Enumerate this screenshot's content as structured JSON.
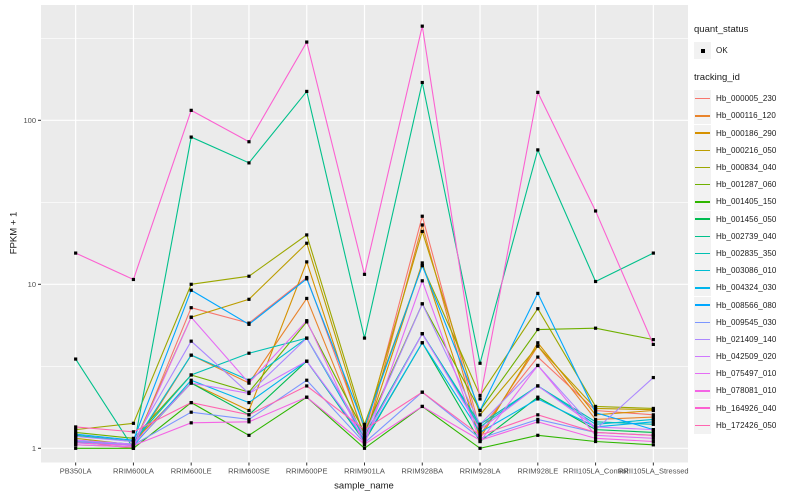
{
  "chart_data": {
    "type": "line",
    "xlabel": "sample_name",
    "ylabel": "FPKM + 1",
    "y_scale": "log10",
    "y_ticks": [
      1,
      10,
      100
    ],
    "y_minor_ticks": [
      3.162,
      31.62,
      316.2
    ],
    "ylim": [
      1,
      505
    ],
    "grid": "on",
    "legend_position": "right",
    "point_color": "#000000",
    "panel_color": "#EBEBEB",
    "grid_color": "#FFFFFF",
    "axis_text_color": "#4D4D4D",
    "categories": [
      "PB350LA",
      "RRIM600LA",
      "RRIM600LE",
      "RRIM600SE",
      "RRIM600PE",
      "RRIM901LA",
      "RRIM928BA",
      "RRIM928LA",
      "RRIM928LE",
      "RRII105LA_Control",
      "RRII105LA_Stressed"
    ],
    "series": [
      {
        "name": "Hb_000005_230",
        "color": "#F8766D",
        "values": [
          1.1,
          1.0,
          7.2,
          5.8,
          11.0,
          1.2,
          26.0,
          1.3,
          3.6,
          1.7,
          1.6
        ]
      },
      {
        "name": "Hb_000116_120",
        "color": "#E9842C",
        "values": [
          1.05,
          1.02,
          3.7,
          2.5,
          8.2,
          1.1,
          23.0,
          1.2,
          4.2,
          1.5,
          1.55
        ]
      },
      {
        "name": "Hb_000186_290",
        "color": "#D69100",
        "values": [
          1.2,
          1.1,
          2.5,
          1.7,
          13.7,
          1.15,
          13.5,
          1.15,
          4.4,
          1.6,
          1.7
        ]
      },
      {
        "name": "Hb_000216_050",
        "color": "#BC9D00",
        "values": [
          1.15,
          1.05,
          6.3,
          8.1,
          17.8,
          1.3,
          21.0,
          1.6,
          4.2,
          1.75,
          1.72
        ]
      },
      {
        "name": "Hb_000834_040",
        "color": "#9CA700",
        "values": [
          1.3,
          1.42,
          10.0,
          11.2,
          20.0,
          1.4,
          13.0,
          2.1,
          7.1,
          1.8,
          1.75
        ]
      },
      {
        "name": "Hb_001287_060",
        "color": "#6FB000",
        "values": [
          1.25,
          1.15,
          2.8,
          2.2,
          5.9,
          1.25,
          7.6,
          1.7,
          5.3,
          5.4,
          4.6
        ]
      },
      {
        "name": "Hb_001405_150",
        "color": "#2FB600",
        "values": [
          1.0,
          1.0,
          1.9,
          1.2,
          2.05,
          1.0,
          1.8,
          1.0,
          1.2,
          1.1,
          1.05
        ]
      },
      {
        "name": "Hb_001456_050",
        "color": "#00BC51",
        "values": [
          1.1,
          1.05,
          2.5,
          1.6,
          3.4,
          1.1,
          4.4,
          1.1,
          2.05,
          1.3,
          1.25
        ]
      },
      {
        "name": "Hb_002739_040",
        "color": "#00C08B",
        "values": [
          3.5,
          1.0,
          79,
          55,
          150,
          4.7,
          170,
          3.3,
          66,
          10.4,
          15.5
        ]
      },
      {
        "name": "Hb_002835_350",
        "color": "#00C0B2",
        "values": [
          1.2,
          1.1,
          2.8,
          3.8,
          4.7,
          1.2,
          5.0,
          1.4,
          2.4,
          1.45,
          1.4
        ]
      },
      {
        "name": "Hb_003086_010",
        "color": "#00BDD2",
        "values": [
          1.12,
          1.06,
          3.7,
          2.6,
          4.7,
          1.15,
          5.0,
          1.35,
          2.4,
          1.4,
          1.5
        ]
      },
      {
        "name": "Hb_004324_030",
        "color": "#00B5EC",
        "values": [
          1.08,
          1.04,
          2.6,
          1.9,
          3.4,
          1.12,
          4.4,
          1.25,
          2.0,
          1.35,
          1.45
        ]
      },
      {
        "name": "Hb_008566_080",
        "color": "#00A7FF",
        "values": [
          1.22,
          1.12,
          9.2,
          5.7,
          10.8,
          1.35,
          13.0,
          1.7,
          8.8,
          1.65,
          1.3
        ]
      },
      {
        "name": "Hb_009545_030",
        "color": "#7C96FF",
        "values": [
          1.1,
          1.05,
          1.66,
          1.5,
          2.6,
          1.08,
          2.2,
          1.15,
          1.5,
          1.25,
          1.2
        ]
      },
      {
        "name": "Hb_021409_140",
        "color": "#AC88FF",
        "values": [
          1.18,
          1.1,
          4.5,
          2.16,
          4.7,
          1.2,
          7.6,
          1.4,
          3.2,
          1.3,
          2.7
        ]
      },
      {
        "name": "Hb_042509_020",
        "color": "#CF78FF",
        "values": [
          1.12,
          1.06,
          2.5,
          2.16,
          3.4,
          1.15,
          5.0,
          1.3,
          2.4,
          1.35,
          1.3
        ]
      },
      {
        "name": "Hb_075497_010",
        "color": "#E56DF5",
        "values": [
          1.05,
          1.02,
          6.3,
          2.5,
          6.0,
          1.05,
          10.5,
          1.1,
          3.2,
          1.2,
          1.15
        ]
      },
      {
        "name": "Hb_078081_010",
        "color": "#F465E5",
        "values": [
          1.08,
          1.04,
          1.43,
          1.45,
          2.05,
          1.06,
          1.8,
          1.12,
          1.45,
          1.15,
          1.1
        ]
      },
      {
        "name": "Hb_164926_040",
        "color": "#FC61D1",
        "values": [
          15.5,
          10.7,
          115,
          74,
          300,
          11.5,
          375,
          2.0,
          148,
          28,
          4.3
        ]
      },
      {
        "name": "Hb_172426_050",
        "color": "#FF65B0",
        "values": [
          1.35,
          1.26,
          1.9,
          1.6,
          2.4,
          1.3,
          2.2,
          1.2,
          1.6,
          1.25,
          1.2
        ]
      }
    ]
  },
  "legend": {
    "quant_status": {
      "title": "quant_status",
      "items": [
        {
          "label": "OK",
          "symbol": "point"
        }
      ]
    },
    "tracking_id": {
      "title": "tracking_id"
    }
  }
}
